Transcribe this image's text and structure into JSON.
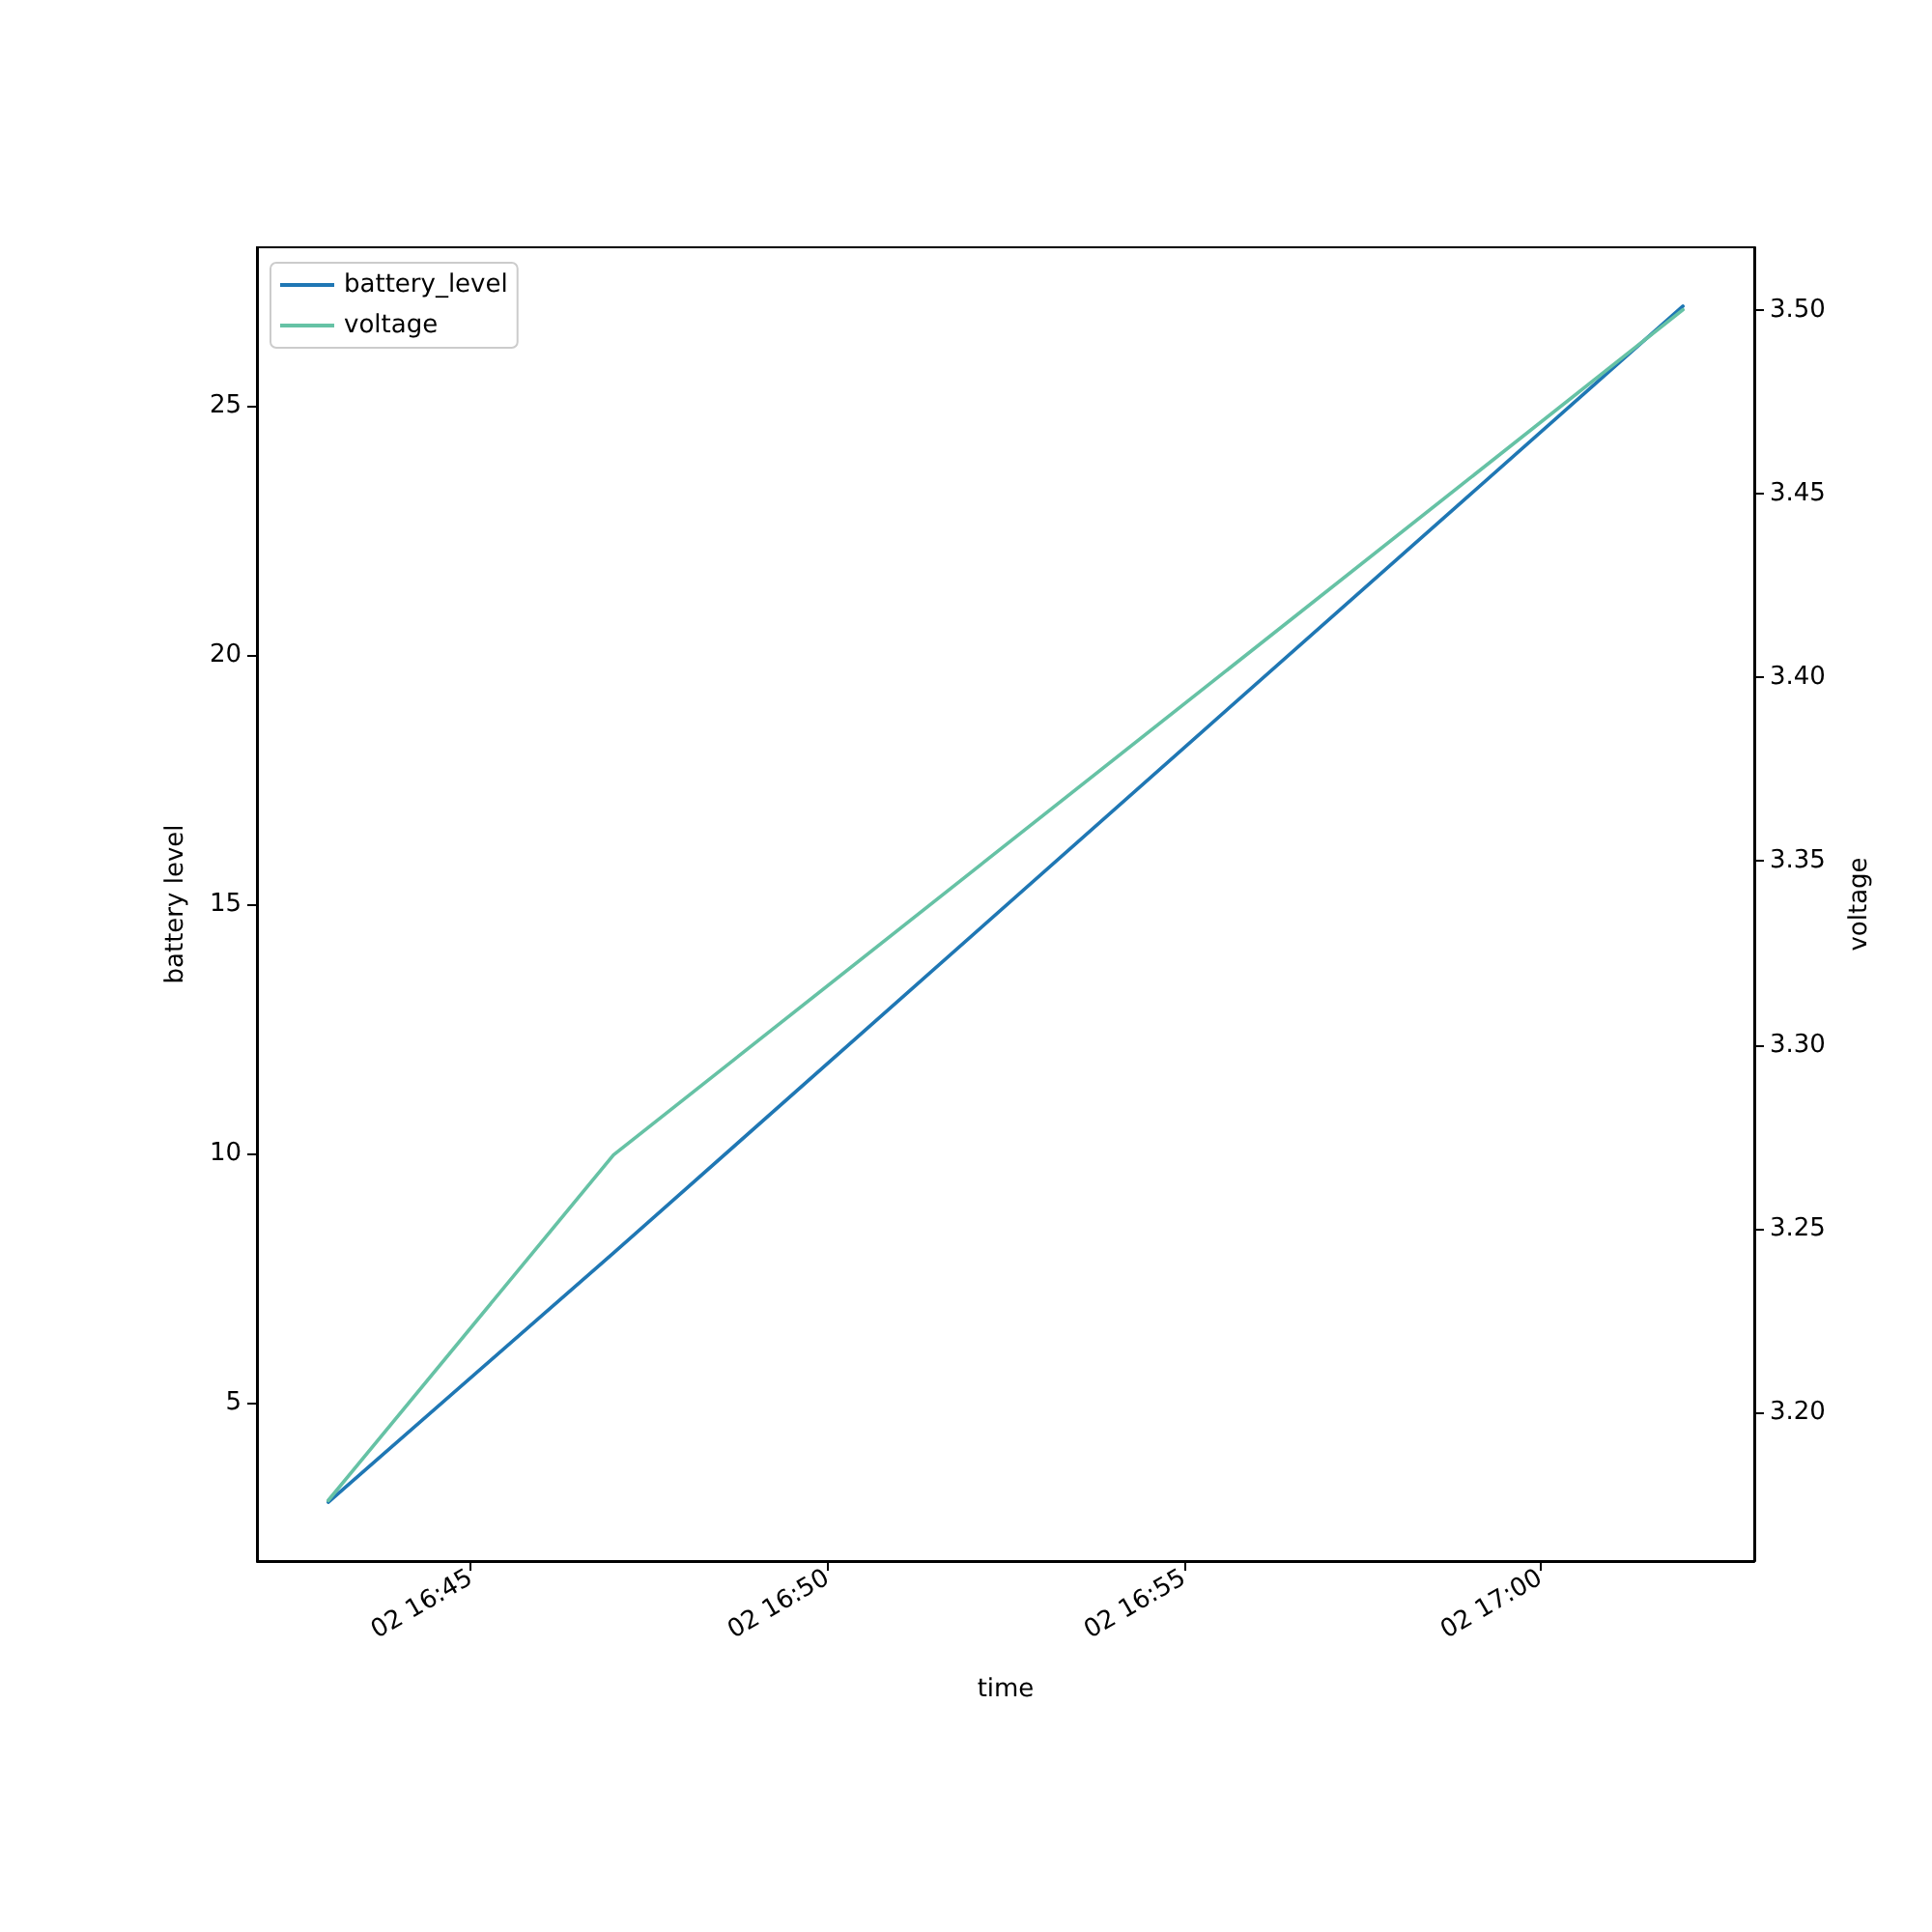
{
  "chart_data": {
    "type": "line",
    "xlabel": "time",
    "ylabel": "battery level",
    "y2label": "voltage",
    "x": [
      "2000-01-02T16:43",
      "2000-01-02T16:47",
      "2000-01-02T17:02"
    ],
    "series": [
      {
        "name": "battery_level",
        "color": "#1f77b4",
        "values": [
          3,
          8,
          27
        ]
      },
      {
        "name": "voltage",
        "color": "#66c2a5",
        "values": [
          3.176,
          3.27,
          3.5
        ],
        "axis": "y2"
      }
    ],
    "xlim": [
      "2000-01-02T16:42",
      "2000-01-02T17:03"
    ],
    "xticks": [
      {
        "value": "2000-01-02T16:45",
        "label": "02 16:45"
      },
      {
        "value": "2000-01-02T16:50",
        "label": "02 16:50"
      },
      {
        "value": "2000-01-02T16:55",
        "label": "02 16:55"
      },
      {
        "value": "2000-01-02T17:00",
        "label": "02 17:00"
      }
    ],
    "ylim": [
      1.82,
      28.18
    ],
    "yticks": [
      5,
      10,
      15,
      20,
      25
    ],
    "y2lim": [
      3.1595,
      3.517
    ],
    "y2ticks": [
      {
        "value": 3.2,
        "label": "3.20"
      },
      {
        "value": 3.25,
        "label": "3.25"
      },
      {
        "value": 3.3,
        "label": "3.30"
      },
      {
        "value": 3.35,
        "label": "3.35"
      },
      {
        "value": 3.4,
        "label": "3.40"
      },
      {
        "value": 3.45,
        "label": "3.45"
      },
      {
        "value": 3.5,
        "label": "3.50"
      }
    ],
    "grid": false,
    "legend": "top left",
    "marker": "none",
    "line_style": "solid"
  }
}
